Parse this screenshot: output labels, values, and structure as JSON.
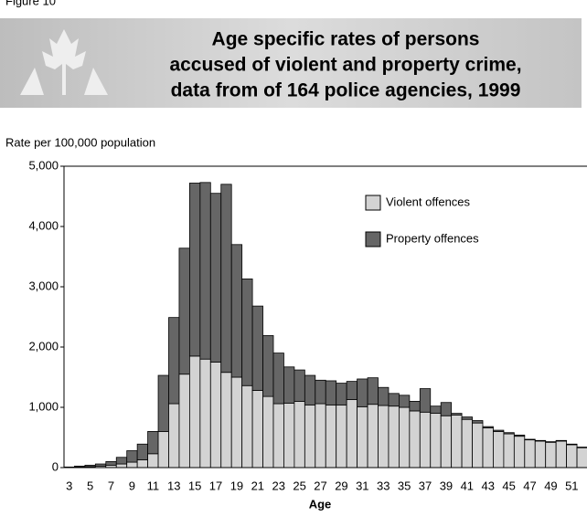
{
  "chart_data": {
    "type": "stacked_bar",
    "figure_label": "Figure 10",
    "title": [
      "Age specific rates of persons",
      "accused of violent and property crime,",
      "data from of 164 police agencies, 1999"
    ],
    "ylabel": "Rate per 100,000 population",
    "xlabel": "Age",
    "categories": [
      3,
      null,
      5,
      null,
      7,
      null,
      9,
      null,
      11,
      null,
      13,
      null,
      15,
      null,
      17,
      null,
      19,
      null,
      21,
      null,
      23,
      null,
      25,
      null,
      27,
      null,
      29,
      null,
      31,
      null,
      33,
      null,
      35,
      null,
      37,
      null,
      39,
      null,
      41,
      null,
      43,
      null,
      45,
      null,
      47,
      null,
      49,
      null,
      51,
      null
    ],
    "series": [
      {
        "name": "Violent offences",
        "color": "#d3d3d3",
        "values": [
          5,
          10,
          15,
          25,
          40,
          60,
          90,
          130,
          230,
          600,
          1060,
          1550,
          1850,
          1800,
          1750,
          1580,
          1500,
          1360,
          1280,
          1180,
          1060,
          1070,
          1100,
          1040,
          1060,
          1040,
          1040,
          1130,
          1010,
          1050,
          1030,
          1020,
          1000,
          940,
          920,
          900,
          860,
          870,
          800,
          740,
          660,
          600,
          560,
          520,
          460,
          440,
          420,
          440,
          380,
          330
        ]
      },
      {
        "name": "Property offences",
        "color": "#666666",
        "values": [
          5,
          15,
          25,
          35,
          60,
          110,
          190,
          260,
          370,
          930,
          1430,
          2090,
          2870,
          2930,
          2800,
          3120,
          2200,
          1770,
          1400,
          1010,
          840,
          600,
          520,
          490,
          390,
          400,
          360,
          300,
          460,
          440,
          300,
          210,
          200,
          160,
          390,
          120,
          220,
          30,
          40,
          40,
          20,
          20,
          20,
          20,
          10,
          10,
          10,
          10,
          10,
          10
        ]
      }
    ],
    "ylim": [
      0,
      5000
    ],
    "yticks": [
      0,
      {
        "value": 1000,
        "label": "1,000"
      },
      {
        "value": 2000,
        "label": "2,000"
      },
      {
        "value": 3000,
        "label": "3,000"
      },
      {
        "value": 4000,
        "label": "4,000"
      },
      {
        "value": 5000,
        "label": "5,000"
      }
    ],
    "legend": "upper-right"
  }
}
